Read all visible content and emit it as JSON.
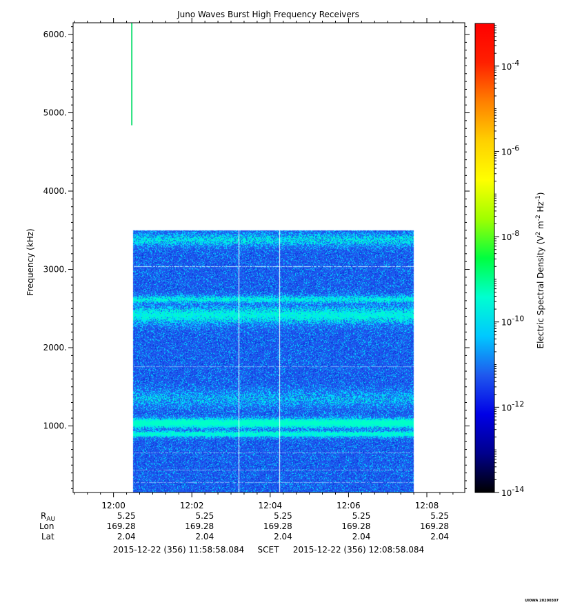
{
  "chart_data": {
    "type": "heatmap",
    "title": "Juno Waves Burst High Frequency Receivers",
    "ylabel": "Frequency (kHz)",
    "xlim": [
      "11:58:58.084",
      "12:08:58.084"
    ],
    "ylim": [
      150,
      6150
    ],
    "x_ticks": [
      "12:00",
      "12:02",
      "12:04",
      "12:06",
      "12:08"
    ],
    "y_ticks": [
      "1000.",
      "2000.",
      "3000.",
      "4000.",
      "5000.",
      "6000."
    ],
    "y_tick_values": [
      1000,
      2000,
      3000,
      4000,
      5000,
      6000
    ],
    "x_tick_minutes": [
      61.916,
      181.916,
      301.916,
      421.916,
      541.916
    ],
    "data_block": {
      "t_start": "12:00:30",
      "t_end": "12:07:40",
      "freq_min_khz": 150,
      "freq_max_khz": 3500,
      "background_color": "#1f58ee"
    },
    "bright_bands_khz": [
      {
        "center": 1040,
        "width": 120,
        "intensity": 0.95
      },
      {
        "center": 900,
        "width": 80,
        "intensity": 0.75
      },
      {
        "center": 2420,
        "width": 220,
        "intensity": 0.6
      },
      {
        "center": 2620,
        "width": 100,
        "intensity": 0.55
      },
      {
        "center": 3380,
        "width": 160,
        "intensity": 0.45
      },
      {
        "center": 1350,
        "width": 220,
        "intensity": 0.3
      }
    ],
    "narrow_lines_khz": [
      3040,
      1760,
      660,
      440,
      280
    ],
    "dropout_times": [
      "12:03:12",
      "12:04:14"
    ],
    "spike": {
      "time": "12:00:28",
      "freq_min_khz": 4840,
      "freq_max_khz": 6150,
      "color": "#22e07a"
    },
    "colorbar": {
      "label": "Electric Spectral Density (V² m⁻² Hz⁻¹)",
      "label_main": "Electric Spectral Density (V",
      "label_sup1": "2",
      "label_mid": " m",
      "label_sup2": "-2",
      "label_mid2": " Hz",
      "label_sup3": "-1",
      "label_end": ")",
      "scale": "log",
      "range": [
        1e-14,
        0.001
      ],
      "ticks": [
        {
          "base": "10",
          "exp": "-4",
          "value": 0.0001
        },
        {
          "base": "10",
          "exp": "-6",
          "value": 1e-06
        },
        {
          "base": "10",
          "exp": "-8",
          "value": 1e-08
        },
        {
          "base": "10",
          "exp": "-10",
          "value": 1e-10
        },
        {
          "base": "10",
          "exp": "-12",
          "value": 1e-12
        },
        {
          "base": "10",
          "exp": "-14",
          "value": 1e-14
        }
      ],
      "colors": [
        "#000000",
        "#00008c",
        "#0000e6",
        "#1f58ee",
        "#00c8ff",
        "#00ffd0",
        "#00ff40",
        "#a0ff00",
        "#ffff00",
        "#ffd000",
        "#ff8000",
        "#ff2000",
        "#ff0000"
      ]
    }
  },
  "ephemeris": {
    "labels": {
      "r_main": "R",
      "r_sub": "AU",
      "lon": "Lon",
      "lat": "Lat"
    },
    "r_au": [
      "5.25",
      "5.25",
      "5.25",
      "5.25",
      "5.25"
    ],
    "lon": [
      "169.28",
      "169.28",
      "169.28",
      "169.28",
      "169.28"
    ],
    "lat": [
      "2.04",
      "2.04",
      "2.04",
      "2.04",
      "2.04"
    ]
  },
  "time_range": {
    "start": "2015-12-22 (356) 11:58:58.084",
    "frame": "SCET",
    "end": "2015-12-22 (356) 12:08:58.084"
  },
  "footer_stamp": "UIOWA 20200307"
}
